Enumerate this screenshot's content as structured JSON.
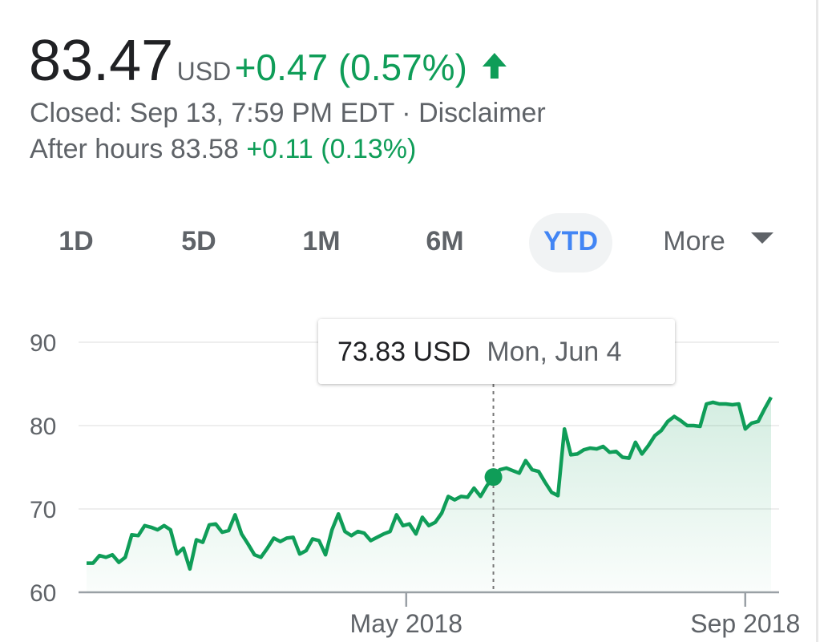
{
  "header": {
    "price": "83.47",
    "currency": "USD",
    "change": "+0.47 (0.57%)",
    "closed": "Closed: Sep 13, 7:59 PM EDT",
    "separator": "·",
    "disclaimer": "Disclaimer",
    "after_hours_label": "After hours",
    "after_hours_price": "83.58",
    "after_hours_change": "+0.11 (0.13%)"
  },
  "tabs": [
    "1D",
    "5D",
    "1M",
    "6M",
    "YTD",
    "More"
  ],
  "chart_data": {
    "type": "line",
    "color": "#0f9d58",
    "values": [
      63.5,
      63.5,
      64.4,
      64.2,
      64.5,
      63.6,
      64.2,
      66.9,
      66.8,
      68,
      67.8,
      67.5,
      68,
      67.5,
      64.6,
      65.3,
      62.8,
      66.3,
      66.0,
      68.1,
      68.2,
      67.2,
      67.4,
      69.3,
      67,
      65.8,
      64.5,
      64.2,
      65.3,
      66.5,
      66.1,
      66.5,
      66.6,
      64.6,
      65.0,
      66.4,
      66.2,
      64.5,
      67.5,
      69.4,
      67.3,
      66.8,
      67.3,
      67.1,
      66.2,
      66.6,
      67.0,
      67.3,
      69.3,
      68.0,
      68.2,
      67.0,
      69.0,
      68.0,
      68.4,
      69.5,
      71.5,
      71.1,
      71.5,
      71.4,
      72.5,
      71.5,
      72.8,
      73.83,
      74.7,
      74.9,
      74.6,
      74.3,
      75.8,
      74.7,
      74.5,
      73.2,
      72.0,
      71.6,
      79.6,
      76.5,
      76.6,
      77.1,
      77.3,
      77.2,
      77.5,
      76.8,
      76.9,
      76.2,
      76.1,
      78.0,
      76.6,
      77.6,
      78.8,
      79.4,
      80.5,
      81.1,
      80.6,
      80.0,
      80.0,
      79.9,
      82.6,
      82.8,
      82.6,
      82.6,
      82.5,
      82.6,
      79.6,
      80.3,
      80.5,
      82.0,
      83.4
    ],
    "xlim": [
      0,
      106
    ],
    "xticks": [
      {
        "value": 49.5,
        "label": "May 2018"
      },
      {
        "value": 102,
        "label": "Sep 2018"
      }
    ],
    "ylim": [
      60,
      90
    ],
    "yticks": [
      60,
      70,
      80,
      90
    ],
    "grid": true,
    "tooltip": {
      "label": "73.83 USD",
      "date": "Mon, Jun 4",
      "x": 63
    }
  }
}
